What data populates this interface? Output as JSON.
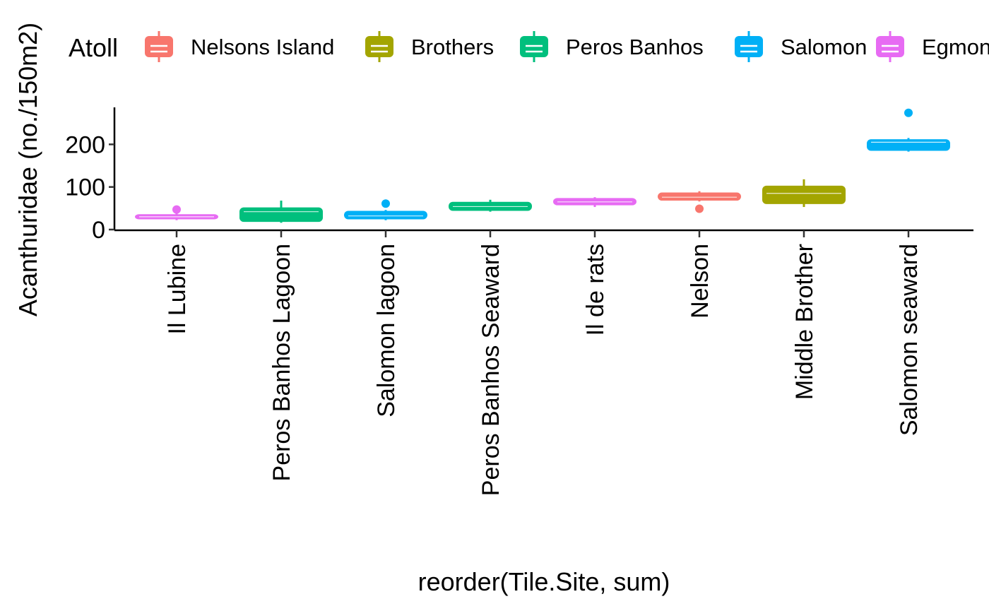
{
  "chart_data": {
    "type": "boxplot",
    "xlabel": "reorder(Tile.Site, sum)",
    "ylabel": "Acanthuridae (no./150m2)",
    "ylim": [
      0,
      285
    ],
    "yticks": [
      0,
      100,
      200
    ],
    "grid": false,
    "legend": {
      "title": "Atoll",
      "position": "top",
      "entries": [
        {
          "name": "Nelsons Island",
          "color": "#F8766D"
        },
        {
          "name": "Brothers",
          "color": "#A3A500"
        },
        {
          "name": "Peros Banhos",
          "color": "#00BF7D"
        },
        {
          "name": "Salomon",
          "color": "#00B0F6"
        },
        {
          "name": "Egmont",
          "color": "#E76BF3"
        }
      ]
    },
    "categories": [
      "Il Lubine",
      "Peros Banhos Lagoon",
      "Salomon lagoon",
      "Peros Banhos Seaward",
      "Il de rats",
      "Nelson",
      "Middle Brother",
      "Salomon seaward"
    ],
    "boxes": [
      {
        "site": "Il Lubine",
        "atoll": "Egmont",
        "min": 22,
        "q1": 24,
        "median": 30,
        "q3": 36,
        "max": 40,
        "outliers": [
          47
        ]
      },
      {
        "site": "Peros Banhos Lagoon",
        "atoll": "Peros Banhos",
        "min": 16,
        "q1": 18,
        "median": 42,
        "q3": 52,
        "max": 68,
        "outliers": []
      },
      {
        "site": "Salomon lagoon",
        "atoll": "Salomon",
        "min": 22,
        "q1": 24,
        "median": 32,
        "q3": 44,
        "max": 46,
        "outliers": [
          61
        ]
      },
      {
        "site": "Peros Banhos Seaward",
        "atoll": "Peros Banhos",
        "min": 42,
        "q1": 44,
        "median": 54,
        "q3": 65,
        "max": 70,
        "outliers": []
      },
      {
        "site": "Il de rats",
        "atoll": "Egmont",
        "min": 53,
        "q1": 57,
        "median": 65,
        "q3": 74,
        "max": 76,
        "outliers": []
      },
      {
        "site": "Nelson",
        "atoll": "Nelsons Island",
        "min": 66,
        "q1": 68,
        "median": 76,
        "q3": 87,
        "max": 90,
        "outliers": [
          49
        ]
      },
      {
        "site": "Middle Brother",
        "atoll": "Brothers",
        "min": 53,
        "q1": 60,
        "median": 85,
        "q3": 103,
        "max": 118,
        "outliers": []
      },
      {
        "site": "Salomon seaward",
        "atoll": "Salomon",
        "min": 183,
        "q1": 185,
        "median": 205,
        "q3": 212,
        "max": 215,
        "outliers": [
          274
        ]
      }
    ]
  }
}
